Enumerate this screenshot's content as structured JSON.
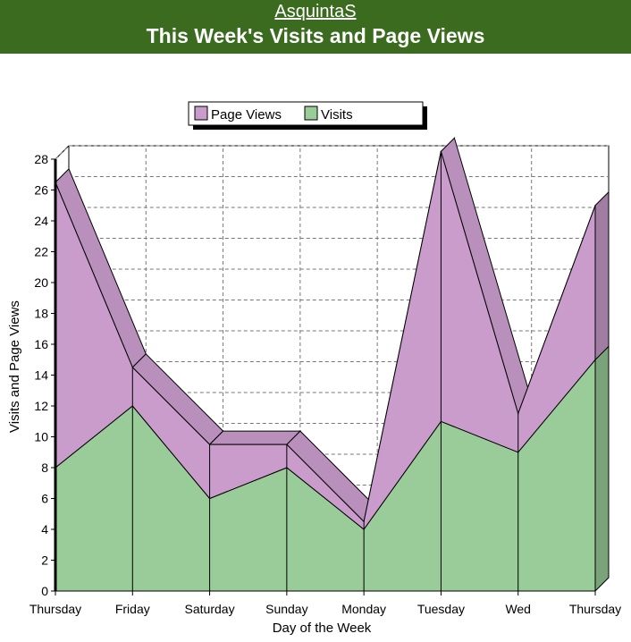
{
  "header": {
    "site_name": "AsquintaS",
    "title": "This Week's Visits and Page Views"
  },
  "colors": {
    "banner": "#3a6b1e",
    "page_views": "#c99ccc",
    "visits": "#99cc99"
  },
  "chart_data": {
    "type": "area",
    "stacked": true,
    "three_d": true,
    "title": "This Week's Visits and Page Views",
    "xlabel": "Day of the Week",
    "ylabel": "Visits and Page Views",
    "categories": [
      "Thursday",
      "Friday",
      "Saturday",
      "Sunday",
      "Monday",
      "Tuesday",
      "Wed",
      "Thursday"
    ],
    "series": [
      {
        "name": "Visits",
        "values": [
          8,
          12,
          6,
          8,
          4,
          11,
          9,
          15
        ]
      },
      {
        "name": "Page Views",
        "values": [
          18.5,
          2.5,
          3.5,
          1.5,
          0.5,
          17.5,
          2.5,
          10
        ]
      }
    ],
    "ylim": [
      0,
      28
    ],
    "yticks": [
      0,
      2,
      4,
      6,
      8,
      10,
      12,
      14,
      16,
      18,
      20,
      22,
      24,
      26,
      28
    ],
    "grid": true,
    "legend": {
      "position": "top",
      "order": [
        "Page Views",
        "Visits"
      ]
    }
  }
}
